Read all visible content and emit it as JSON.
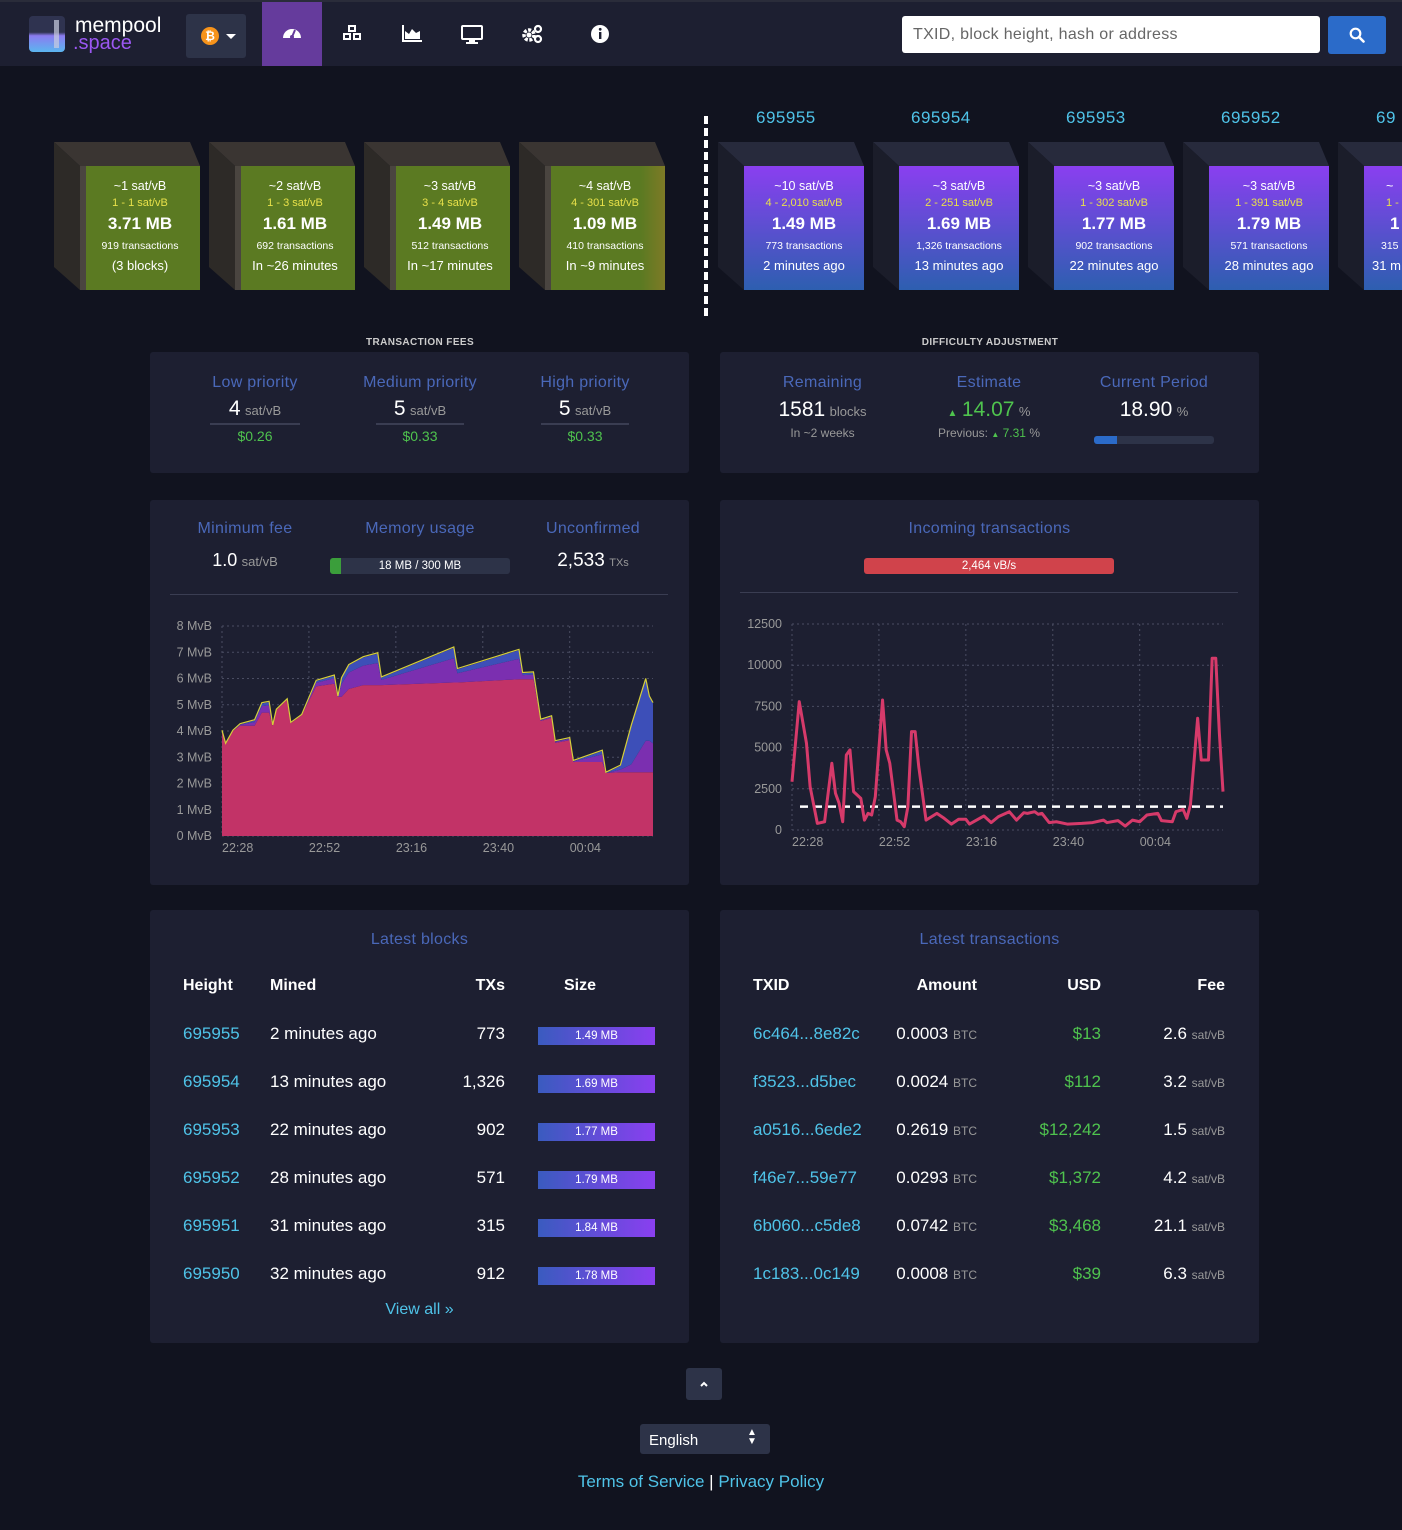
{
  "header": {
    "brand_top": "mempool",
    "brand_bottom": ".space",
    "network_icon": "bitcoin-icon",
    "network_symbol": "₿",
    "nav": [
      {
        "name": "dashboard",
        "icon": "tachometer-icon",
        "active": true
      },
      {
        "name": "blocks",
        "icon": "cubes-icon"
      },
      {
        "name": "graphs",
        "icon": "area-chart-icon"
      },
      {
        "name": "tv-view",
        "icon": "monitor-icon"
      },
      {
        "name": "api",
        "icon": "cogs-icon"
      },
      {
        "name": "about",
        "icon": "info-circle-icon"
      }
    ],
    "search_placeholder": "TXID, block height, hash or address",
    "search_icon": "search-icon"
  },
  "mempool_blocks": [
    {
      "median": "~1 sat/vB",
      "range": "1 - 1 sat/vB",
      "size": "3.71 MB",
      "txs": "919 transactions",
      "eta": "(3 blocks)"
    },
    {
      "median": "~2 sat/vB",
      "range": "1 - 3 sat/vB",
      "size": "1.61 MB",
      "txs": "692 transactions",
      "eta": "In ~26 minutes"
    },
    {
      "median": "~3 sat/vB",
      "range": "3 - 4 sat/vB",
      "size": "1.49 MB",
      "txs": "512 transactions",
      "eta": "In ~17 minutes"
    },
    {
      "median": "~4 sat/vB",
      "range": "4 - 301 sat/vB",
      "size": "1.09 MB",
      "txs": "410 transactions",
      "eta": "In ~9 minutes"
    }
  ],
  "mined_blocks": [
    {
      "height": "695955",
      "median": "~10 sat/vB",
      "range": "4 - 2,010 sat/vB",
      "size": "1.49 MB",
      "txs": "773 transactions",
      "ago": "2 minutes ago"
    },
    {
      "height": "695954",
      "median": "~3 sat/vB",
      "range": "2 - 251 sat/vB",
      "size": "1.69 MB",
      "txs": "1,326 transactions",
      "ago": "13 minutes ago"
    },
    {
      "height": "695953",
      "median": "~3 sat/vB",
      "range": "1 - 302 sat/vB",
      "size": "1.77 MB",
      "txs": "902 transactions",
      "ago": "22 minutes ago"
    },
    {
      "height": "695952",
      "median": "~3 sat/vB",
      "range": "1 - 391 sat/vB",
      "size": "1.79 MB",
      "txs": "571 transactions",
      "ago": "28 minutes ago"
    },
    {
      "height": "69",
      "median": "~",
      "range": "1 -",
      "size": "1",
      "txs": "315",
      "ago": "31 m"
    }
  ],
  "fees": {
    "section_title": "TRANSACTION FEES",
    "items": [
      {
        "label": "Low priority",
        "value": "4",
        "unit": "sat/vB",
        "usd": "$0.26"
      },
      {
        "label": "Medium priority",
        "value": "5",
        "unit": "sat/vB",
        "usd": "$0.33"
      },
      {
        "label": "High priority",
        "value": "5",
        "unit": "sat/vB",
        "usd": "$0.33"
      }
    ]
  },
  "difficulty": {
    "section_title": "DIFFICULTY ADJUSTMENT",
    "remaining_label": "Remaining",
    "remaining_value": "1581",
    "remaining_unit": "blocks",
    "remaining_sub": "In ~2 weeks",
    "estimate_label": "Estimate",
    "estimate_arrow": "▲",
    "estimate_value": "14.07",
    "estimate_unit": "%",
    "previous_label": "Previous:",
    "previous_arrow": "▲",
    "previous_value": "7.31",
    "previous_unit": "%",
    "period_label": "Current Period",
    "period_value": "18.90",
    "period_unit": "%",
    "period_progress": 0.189
  },
  "mempool_stats": {
    "min_fee_label": "Minimum fee",
    "min_fee_value": "1.0",
    "min_fee_unit": "sat/vB",
    "memory_label": "Memory usage",
    "memory_value": "18 MB / 300 MB",
    "memory_fraction": 0.06,
    "unconfirmed_label": "Unconfirmed",
    "unconfirmed_value": "2,533",
    "unconfirmed_unit": "TXs"
  },
  "incoming": {
    "label": "Incoming transactions",
    "rate": "2,464 vB/s",
    "color": "#d0434b"
  },
  "chart_data": [
    {
      "type": "area",
      "stacked": true,
      "grid": true,
      "ylim": [
        0,
        8
      ],
      "yticks": [
        "0 MvB",
        "1 MvB",
        "2 MvB",
        "3 MvB",
        "4 MvB",
        "5 MvB",
        "6 MvB",
        "7 MvB",
        "8 MvB"
      ],
      "xticks": [
        "22:28",
        "22:52",
        "23:16",
        "23:40",
        "00:04"
      ],
      "x": [
        "22:28",
        "22:29",
        "22:31",
        "22:33",
        "22:37",
        "22:39",
        "22:41",
        "22:42",
        "22:43",
        "22:46",
        "22:47",
        "22:50",
        "22:54",
        "22:59",
        "23:00",
        "23:01",
        "23:03",
        "23:07",
        "23:11",
        "23:12",
        "23:32",
        "23:33",
        "23:50",
        "23:51",
        "23:54",
        "23:56",
        "23:59",
        "00:00",
        "00:04",
        "00:05",
        "00:13",
        "00:14",
        "00:18",
        "00:21",
        "00:25",
        "00:26",
        "00:27"
      ],
      "series": [
        {
          "color": "#c23367",
          "values": [
            4.0,
            3.5,
            4.0,
            4.2,
            4.2,
            4.7,
            4.7,
            4.2,
            4.8,
            5.2,
            4.3,
            4.6,
            5.7,
            5.8,
            5.3,
            5.3,
            5.6,
            5.75,
            5.75,
            5.75,
            5.85,
            5.85,
            5.97,
            5.97,
            5.97,
            4.38,
            4.5,
            3.55,
            3.65,
            2.82,
            2.82,
            2.4,
            2.43,
            2.43,
            2.43,
            2.43,
            2.43
          ]
        },
        {
          "color": "#7b2fb0",
          "values": [
            0,
            0,
            0,
            0.04,
            0.14,
            0.25,
            0.28,
            0,
            0,
            0,
            0,
            0,
            0.14,
            0.21,
            0,
            0.49,
            0.63,
            0.74,
            0.84,
            0.2,
            0.92,
            0.35,
            0.78,
            0.16,
            0.18,
            0.03,
            0.04,
            0.04,
            0.05,
            0.02,
            0.29,
            0,
            0.1,
            0.3,
            1.2,
            1.2,
            1.1
          ]
        },
        {
          "color": "#3d4fb8",
          "values": [
            0,
            0,
            0,
            0.01,
            0.06,
            0.1,
            0.12,
            0,
            0,
            0,
            0,
            0,
            0.06,
            0.09,
            0,
            0.21,
            0.27,
            0.31,
            0.36,
            0.08,
            0.4,
            0.15,
            0.33,
            0.07,
            0.07,
            0.01,
            0.01,
            0.01,
            0.02,
            0.01,
            0.13,
            0,
            0.14,
            1.46,
            2.34,
            1.67,
            1.52
          ]
        }
      ]
    },
    {
      "type": "line",
      "grid": true,
      "ylim": [
        0,
        12500
      ],
      "yticks": [
        "0",
        "2500",
        "5000",
        "7500",
        "10000",
        "12500"
      ],
      "xticks": [
        "22:28",
        "22:52",
        "23:16",
        "23:40",
        "00:04"
      ],
      "reference_line": 1420,
      "reference_style": "dashed",
      "line_color": "#d63a6a",
      "x": [
        "22:28",
        "22:30",
        "22:32",
        "22:33",
        "22:35",
        "22:37",
        "22:39",
        "22:40",
        "22:41",
        "22:42",
        "22:43",
        "22:44",
        "22:45",
        "22:47",
        "22:48",
        "22:49",
        "22:50",
        "22:51",
        "22:53",
        "22:54",
        "22:55",
        "22:57",
        "22:58",
        "22:59",
        "23:00",
        "23:01",
        "23:02",
        "23:03",
        "23:04",
        "23:05",
        "23:08",
        "23:10",
        "23:12",
        "23:14",
        "23:16",
        "23:17",
        "23:21",
        "23:23",
        "23:25",
        "23:28",
        "23:30",
        "23:32",
        "23:33",
        "23:35",
        "23:36",
        "23:37",
        "23:39",
        "23:41",
        "23:44",
        "23:48",
        "23:51",
        "23:54",
        "23:55",
        "23:58",
        "00:00",
        "00:02",
        "00:04",
        "00:06",
        "00:09",
        "00:10",
        "00:13",
        "00:14",
        "00:16",
        "00:17",
        "00:18",
        "00:20",
        "00:21",
        "00:23",
        "00:24",
        "00:25",
        "00:26",
        "00:27"
      ],
      "values": [
        2930,
        7790,
        5260,
        2630,
        400,
        500,
        4050,
        2230,
        1620,
        500,
        4550,
        4860,
        2330,
        1920,
        600,
        1010,
        910,
        2020,
        7890,
        4860,
        4050,
        600,
        500,
        200,
        1420,
        5970,
        5970,
        3840,
        2230,
        600,
        1010,
        710,
        360,
        650,
        650,
        360,
        850,
        450,
        810,
        1110,
        600,
        1050,
        1010,
        1110,
        950,
        1010,
        450,
        500,
        360,
        400,
        450,
        600,
        450,
        570,
        240,
        600,
        500,
        910,
        1010,
        570,
        500,
        1110,
        1250,
        710,
        1520,
        6780,
        4250,
        4250,
        10420,
        10420,
        5870,
        2330
      ]
    }
  ],
  "latest_blocks": {
    "title": "Latest blocks",
    "headers": [
      "Height",
      "Mined",
      "TXs",
      "Size"
    ],
    "rows": [
      {
        "height": "695955",
        "mined": "2 minutes ago",
        "txs": "773",
        "size": "1.49 MB"
      },
      {
        "height": "695954",
        "mined": "13 minutes ago",
        "txs": "1,326",
        "size": "1.69 MB"
      },
      {
        "height": "695953",
        "mined": "22 minutes ago",
        "txs": "902",
        "size": "1.77 MB"
      },
      {
        "height": "695952",
        "mined": "28 minutes ago",
        "txs": "571",
        "size": "1.79 MB"
      },
      {
        "height": "695951",
        "mined": "31 minutes ago",
        "txs": "315",
        "size": "1.84 MB"
      },
      {
        "height": "695950",
        "mined": "32 minutes ago",
        "txs": "912",
        "size": "1.78 MB"
      }
    ],
    "view_all": "View all »"
  },
  "latest_transactions": {
    "title": "Latest transactions",
    "headers": [
      "TXID",
      "Amount",
      "USD",
      "Fee"
    ],
    "rows": [
      {
        "txid": "6c464...8e82c",
        "amount": "0.0003",
        "amount_unit": "BTC",
        "usd": "$13",
        "fee": "2.6",
        "fee_unit": "sat/vB"
      },
      {
        "txid": "f3523...d5bec",
        "amount": "0.0024",
        "amount_unit": "BTC",
        "usd": "$112",
        "fee": "3.2",
        "fee_unit": "sat/vB"
      },
      {
        "txid": "a0516...6ede2",
        "amount": "0.2619",
        "amount_unit": "BTC",
        "usd": "$12,242",
        "fee": "1.5",
        "fee_unit": "sat/vB"
      },
      {
        "txid": "f46e7...59e77",
        "amount": "0.0293",
        "amount_unit": "BTC",
        "usd": "$1,372",
        "fee": "4.2",
        "fee_unit": "sat/vB"
      },
      {
        "txid": "6b060...c5de8",
        "amount": "0.0742",
        "amount_unit": "BTC",
        "usd": "$3,468",
        "fee": "21.1",
        "fee_unit": "sat/vB"
      },
      {
        "txid": "1c183...0c149",
        "amount": "0.0008",
        "amount_unit": "BTC",
        "usd": "$39",
        "fee": "6.3",
        "fee_unit": "sat/vB"
      }
    ]
  },
  "footer": {
    "scroll_top_icon": "chevron-up-icon",
    "language": "English",
    "terms": "Terms of Service",
    "separator": "|",
    "privacy": "Privacy Policy"
  }
}
